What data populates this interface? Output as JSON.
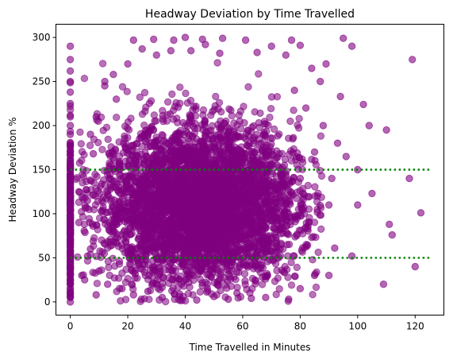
{
  "chart_data": {
    "type": "scatter",
    "title": "Headway Deviation by Time Travelled",
    "xlabel": "Time Travelled in Minutes",
    "ylabel": "Headway Deviation %",
    "xlim": [
      -5,
      130
    ],
    "ylim": [
      -15,
      315
    ],
    "xticks": [
      "0",
      "20",
      "40",
      "60",
      "80",
      "100",
      "120"
    ],
    "yticks": [
      "0",
      "50",
      "100",
      "150",
      "200",
      "250",
      "300"
    ],
    "grid": false,
    "colors": {
      "points": "#800080",
      "reference_lines": "#008000"
    },
    "reference_lines": [
      {
        "y": 150,
        "x_range": [
          0,
          125
        ],
        "style": "dotted"
      },
      {
        "y": 50,
        "x_range": [
          0,
          125
        ],
        "style": "dotted"
      }
    ],
    "series": [
      {
        "density_model": "Dense cloud of several thousand points: x mostly 5-85 min (center ~45), y mostly 10-250 (center ~110); vertical strip of points at x=0 spanning y 0-290; sparse outliers out to x~122.",
        "points": [
          [
            0,
            0
          ],
          [
            0,
            5
          ],
          [
            0,
            12
          ],
          [
            0,
            20
          ],
          [
            0,
            30
          ],
          [
            0,
            40
          ],
          [
            0,
            52
          ],
          [
            0,
            65
          ],
          [
            0,
            78
          ],
          [
            0,
            90
          ],
          [
            0,
            105
          ],
          [
            0,
            120
          ],
          [
            0,
            135
          ],
          [
            0,
            150
          ],
          [
            0,
            160
          ],
          [
            0,
            170
          ],
          [
            0,
            180
          ],
          [
            0,
            190
          ],
          [
            0,
            200
          ],
          [
            0,
            210
          ],
          [
            0,
            225
          ],
          [
            0,
            238
          ],
          [
            0,
            250
          ],
          [
            0,
            262
          ],
          [
            0,
            275
          ],
          [
            0,
            290
          ],
          [
            3,
            125
          ],
          [
            3,
            90
          ],
          [
            4,
            30
          ],
          [
            5,
            25
          ],
          [
            6,
            52
          ],
          [
            6,
            115
          ],
          [
            8,
            168
          ],
          [
            9,
            8
          ],
          [
            40,
            300
          ],
          [
            22,
            297
          ],
          [
            29,
            298
          ],
          [
            46,
            298
          ],
          [
            53,
            299
          ],
          [
            36,
            297
          ],
          [
            77,
            297
          ],
          [
            80,
            291
          ],
          [
            95,
            299
          ],
          [
            98,
            290
          ],
          [
            119,
            275
          ],
          [
            122,
            101
          ],
          [
            118,
            140
          ],
          [
            120,
            40
          ],
          [
            110,
            195
          ],
          [
            111,
            88
          ],
          [
            112,
            76
          ],
          [
            109,
            20
          ],
          [
            105,
            123
          ],
          [
            104,
            200
          ],
          [
            102,
            224
          ],
          [
            100,
            150
          ],
          [
            100,
            110
          ],
          [
            98,
            52
          ],
          [
            96,
            165
          ],
          [
            94,
            233
          ],
          [
            93,
            180
          ],
          [
            92,
            61
          ],
          [
            91,
            140
          ],
          [
            90,
            30
          ],
          [
            90,
            110
          ],
          [
            89,
            270
          ],
          [
            88,
            200
          ],
          [
            87,
            250
          ],
          [
            86,
            120
          ],
          [
            85,
            30
          ],
          [
            85,
            170
          ],
          [
            84,
            265
          ],
          [
            83,
            90
          ],
          [
            82,
            220
          ],
          [
            80,
            15
          ],
          [
            80,
            140
          ],
          [
            78,
            240
          ],
          [
            76,
            3
          ],
          [
            75,
            280
          ],
          [
            73,
            60
          ],
          [
            70,
            290
          ],
          [
            68,
            5
          ],
          [
            65,
            283
          ],
          [
            63,
            4
          ],
          [
            61,
            297
          ],
          [
            58,
            10
          ],
          [
            55,
            3
          ],
          [
            52,
            282
          ],
          [
            50,
            6
          ],
          [
            47,
            292
          ],
          [
            44,
            2
          ],
          [
            42,
            285
          ],
          [
            38,
            9
          ],
          [
            35,
            285
          ],
          [
            32,
            5
          ],
          [
            30,
            280
          ],
          [
            27,
            12
          ],
          [
            25,
            287
          ],
          [
            22,
            8
          ],
          [
            20,
            270
          ],
          [
            18,
            15
          ],
          [
            15,
            258
          ],
          [
            13,
            20
          ],
          [
            12,
            245
          ],
          [
            10,
            35
          ],
          [
            9,
            210
          ],
          [
            7,
            60
          ],
          [
            7,
            190
          ],
          [
            12,
            250
          ],
          [
            16,
            230
          ]
        ]
      }
    ]
  }
}
